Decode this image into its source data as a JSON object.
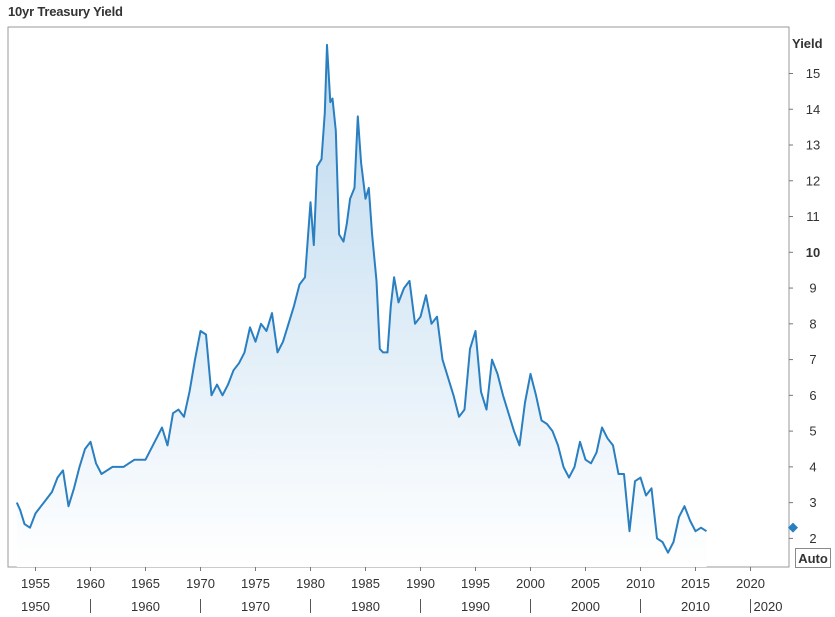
{
  "title": "10yr Treasury Yield",
  "auto_button": "Auto",
  "chart_data": {
    "type": "area",
    "title": "10yr Treasury Yield",
    "xlabel": "",
    "ylabel": "Yield",
    "xlim": [
      1952.5,
      2023.5
    ],
    "ylim": [
      1.2,
      16.3
    ],
    "grid": false,
    "y_ticks": [
      "2",
      "3",
      "4",
      "5",
      "6",
      "7",
      "8",
      "9",
      "10",
      "11",
      "12",
      "13",
      "14",
      "15"
    ],
    "x_ticks_major": [
      "1955",
      "1960",
      "1965",
      "1970",
      "1975",
      "1980",
      "1985",
      "1990",
      "1995",
      "2000",
      "2005",
      "2010",
      "2015",
      "2020"
    ],
    "x_ticks_decade": [
      "1950",
      "1960",
      "1970",
      "1980",
      "1990",
      "2000",
      "2010",
      "2020"
    ],
    "current_marker_value": 2.3,
    "line_color": "#2a7fc1",
    "fill_color": "#cfe3f2",
    "series": [
      {
        "x": [
          1953.3,
          1953.6,
          1954.0,
          1954.5,
          1955.0,
          1955.5,
          1956.0,
          1956.5,
          1957.0,
          1957.5,
          1958.0,
          1958.5,
          1959.0,
          1959.5,
          1960.0,
          1960.5,
          1961.0,
          1961.5,
          1962.0,
          1963.0,
          1964.0,
          1965.0,
          1966.0,
          1966.5,
          1967.0,
          1967.5,
          1968.0,
          1968.5,
          1969.0,
          1969.5,
          1970.0,
          1970.5,
          1971.0,
          1971.5,
          1972.0,
          1972.5,
          1973.0,
          1973.5,
          1974.0,
          1974.5,
          1975.0,
          1975.5,
          1976.0,
          1976.5,
          1977.0,
          1977.5,
          1978.0,
          1978.5,
          1979.0,
          1979.5,
          1980.0,
          1980.3,
          1980.6,
          1981.0,
          1981.3,
          1981.5,
          1981.8,
          1982.0,
          1982.3,
          1982.6,
          1983.0,
          1983.3,
          1983.6,
          1984.0,
          1984.3,
          1984.6,
          1985.0,
          1985.3,
          1985.6,
          1986.0,
          1986.3,
          1986.6,
          1987.0,
          1987.3,
          1987.6,
          1988.0,
          1988.5,
          1989.0,
          1989.5,
          1990.0,
          1990.5,
          1991.0,
          1991.5,
          1992.0,
          1992.5,
          1993.0,
          1993.5,
          1994.0,
          1994.5,
          1995.0,
          1995.5,
          1996.0,
          1996.5,
          1997.0,
          1997.5,
          1998.0,
          1998.5,
          1999.0,
          1999.5,
          2000.0,
          2000.5,
          2001.0,
          2001.5,
          2002.0,
          2002.5,
          2003.0,
          2003.5,
          2004.0,
          2004.5,
          2005.0,
          2005.5,
          2006.0,
          2006.5,
          2007.0,
          2007.5,
          2008.0,
          2008.5,
          2009.0,
          2009.5,
          2010.0,
          2010.5,
          2011.0,
          2011.5,
          2012.0,
          2012.5,
          2013.0,
          2013.5,
          2014.0,
          2014.5,
          2015.0,
          2015.5,
          2016.0
        ],
        "y": [
          3.0,
          2.8,
          2.4,
          2.3,
          2.7,
          2.9,
          3.1,
          3.3,
          3.7,
          3.9,
          2.9,
          3.4,
          4.0,
          4.5,
          4.7,
          4.1,
          3.8,
          3.9,
          4.0,
          4.0,
          4.2,
          4.2,
          4.8,
          5.1,
          4.6,
          5.5,
          5.6,
          5.4,
          6.1,
          7.0,
          7.8,
          7.7,
          6.0,
          6.3,
          6.0,
          6.3,
          6.7,
          6.9,
          7.2,
          7.9,
          7.5,
          8.0,
          7.8,
          8.3,
          7.2,
          7.5,
          8.0,
          8.5,
          9.1,
          9.3,
          11.4,
          10.2,
          12.4,
          12.6,
          13.9,
          15.8,
          14.2,
          14.3,
          13.4,
          10.5,
          10.3,
          10.8,
          11.5,
          11.8,
          13.8,
          12.5,
          11.5,
          11.8,
          10.5,
          9.2,
          7.3,
          7.2,
          7.2,
          8.5,
          9.3,
          8.6,
          9.0,
          9.2,
          8.0,
          8.2,
          8.8,
          8.0,
          8.2,
          7.0,
          6.5,
          6.0,
          5.4,
          5.6,
          7.3,
          7.8,
          6.1,
          5.6,
          7.0,
          6.6,
          6.0,
          5.5,
          5.0,
          4.6,
          5.8,
          6.6,
          6.0,
          5.3,
          5.2,
          5.0,
          4.6,
          4.0,
          3.7,
          4.0,
          4.7,
          4.2,
          4.1,
          4.4,
          5.1,
          4.8,
          4.6,
          3.8,
          3.8,
          2.2,
          3.6,
          3.7,
          3.2,
          3.4,
          2.0,
          1.9,
          1.6,
          1.9,
          2.6,
          2.9,
          2.5,
          2.2,
          2.3,
          2.2
        ]
      }
    ]
  }
}
